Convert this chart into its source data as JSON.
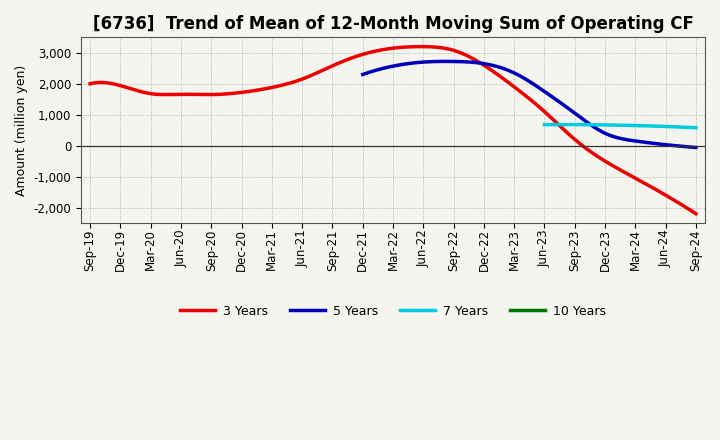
{
  "title": "[6736]  Trend of Mean of 12-Month Moving Sum of Operating CF",
  "ylabel": "Amount (million yen)",
  "background_color": "#f5f5f0",
  "plot_bg_color": "#f5f5f0",
  "grid_color": "#999999",
  "x_labels": [
    "Sep-19",
    "Dec-19",
    "Mar-20",
    "Jun-20",
    "Sep-20",
    "Dec-20",
    "Mar-21",
    "Jun-21",
    "Sep-21",
    "Dec-21",
    "Mar-22",
    "Jun-22",
    "Sep-22",
    "Dec-22",
    "Mar-23",
    "Jun-23",
    "Sep-23",
    "Dec-23",
    "Mar-24",
    "Jun-24",
    "Sep-24"
  ],
  "series": {
    "3 Years": {
      "color": "#ee0000",
      "values": [
        2000,
        1940,
        1680,
        1660,
        1650,
        1720,
        1880,
        2150,
        2580,
        2950,
        3150,
        3200,
        3080,
        2600,
        1900,
        1100,
        200,
        -500,
        -1050,
        -1600,
        -2200
      ]
    },
    "5 Years": {
      "color": "#0000bb",
      "values": [
        null,
        null,
        null,
        null,
        null,
        null,
        null,
        null,
        null,
        2300,
        2570,
        2700,
        2720,
        2650,
        2350,
        1750,
        1050,
        400,
        150,
        30,
        -60
      ]
    },
    "7 Years": {
      "color": "#00ccdd",
      "values": [
        null,
        null,
        null,
        null,
        null,
        null,
        null,
        null,
        null,
        null,
        null,
        null,
        null,
        null,
        null,
        680,
        680,
        670,
        650,
        620,
        580
      ]
    },
    "10 Years": {
      "color": "#007700",
      "values": [
        null,
        null,
        null,
        null,
        null,
        null,
        null,
        null,
        null,
        null,
        null,
        null,
        null,
        null,
        null,
        null,
        null,
        null,
        null,
        null,
        null
      ]
    }
  },
  "ylim": [
    -2500,
    3500
  ],
  "yticks": [
    -2000,
    -1000,
    0,
    1000,
    2000,
    3000
  ],
  "legend_items": [
    "3 Years",
    "5 Years",
    "7 Years",
    "10 Years"
  ],
  "legend_colors": [
    "#ee0000",
    "#0000bb",
    "#00ccdd",
    "#007700"
  ],
  "title_fontsize": 12,
  "axis_label_fontsize": 9,
  "tick_fontsize": 8.5,
  "legend_fontsize": 9
}
